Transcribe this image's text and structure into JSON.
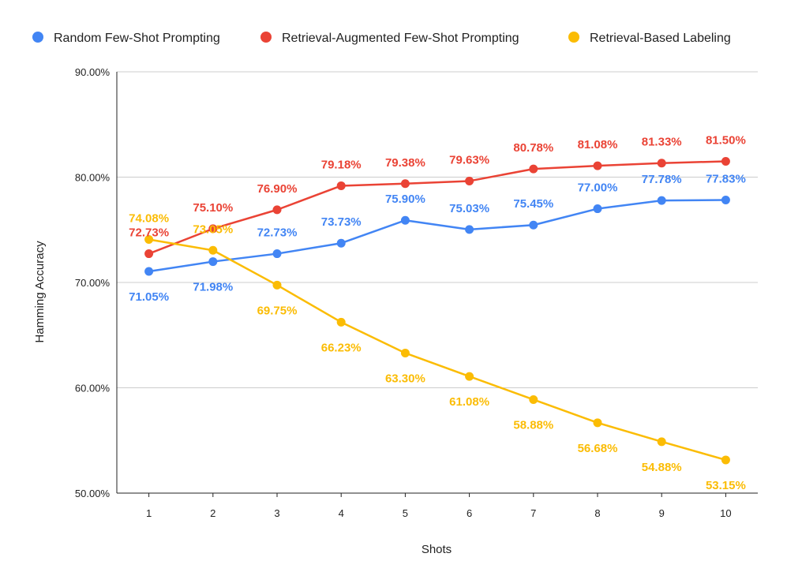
{
  "chart_data": {
    "type": "line",
    "title": "",
    "xlabel": "Shots",
    "ylabel": "Hamming Accuracy",
    "categories": [
      "1",
      "2",
      "3",
      "4",
      "5",
      "6",
      "7",
      "8",
      "9",
      "10"
    ],
    "ylim": [
      50,
      90
    ],
    "yticks": [
      50,
      60,
      70,
      80,
      90
    ],
    "ytick_labels": [
      "50.00%",
      "60.00%",
      "70.00%",
      "80.00%",
      "90.00%"
    ],
    "grid": true,
    "legend_position": "top",
    "series": [
      {
        "name": "Random Few-Shot Prompting",
        "color": "#4285F4",
        "values": [
          71.05,
          71.98,
          72.73,
          73.73,
          75.9,
          75.03,
          75.45,
          77.0,
          77.78,
          77.83
        ],
        "labels": [
          "71.05%",
          "71.98%",
          "72.73%",
          "73.73%",
          "75.90%",
          "75.03%",
          "75.45%",
          "77.00%",
          "77.78%",
          "77.83%"
        ]
      },
      {
        "name": "Retrieval-Augmented Few-Shot Prompting",
        "color": "#EA4335",
        "values": [
          72.73,
          75.1,
          76.9,
          79.18,
          79.38,
          79.63,
          80.78,
          81.08,
          81.33,
          81.5
        ],
        "labels": [
          "72.73%",
          "75.10%",
          "76.90%",
          "79.18%",
          "79.38%",
          "79.63%",
          "80.78%",
          "81.08%",
          "81.33%",
          "81.50%"
        ]
      },
      {
        "name": "Retrieval-Based Labeling",
        "color": "#FBBC04",
        "values": [
          74.08,
          73.05,
          69.75,
          66.23,
          63.3,
          61.08,
          58.88,
          56.68,
          54.88,
          53.15
        ],
        "labels": [
          "74.08%",
          "73.05%",
          "69.75%",
          "66.23%",
          "63.30%",
          "61.08%",
          "58.88%",
          "56.68%",
          "54.88%",
          "53.15%"
        ]
      }
    ]
  }
}
